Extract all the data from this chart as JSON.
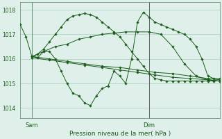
{
  "bg_color": "#dff0ea",
  "line_color": "#1a5c1a",
  "grid_color": "#a8cfc0",
  "axis_color": "#5a8a6a",
  "title": "Pression niveau de la mer( hPa )",
  "xlabel_sam": "Sam",
  "xlabel_dim": "Dim",
  "ylim": [
    1013.6,
    1018.3
  ],
  "yticks": [
    1014,
    1015,
    1016,
    1017,
    1018
  ],
  "xlim": [
    0,
    34
  ],
  "sam_x": 2,
  "dim_x": 22,
  "series": [
    {
      "x": [
        0,
        1,
        2,
        3,
        4,
        5,
        6,
        7,
        8,
        9,
        10,
        11,
        12,
        13,
        14,
        15,
        16,
        17,
        18,
        19,
        20,
        21,
        22,
        23,
        24,
        25,
        26,
        27,
        28,
        29,
        30,
        31,
        32,
        33,
        34
      ],
      "y": [
        1017.4,
        1016.9,
        1016.1,
        1016.05,
        1016.3,
        1016.3,
        1016.0,
        1015.5,
        1015.0,
        1014.6,
        1014.5,
        1014.2,
        1014.1,
        1014.5,
        1014.8,
        1014.9,
        1015.5,
        1015.3,
        1015.0,
        1016.0,
        1017.5,
        1017.9,
        1017.7,
        1017.5,
        1017.4,
        1017.3,
        1017.2,
        1017.1,
        1017.0,
        1016.8,
        1016.5,
        1016.0,
        1015.3,
        1015.2,
        1015.2
      ]
    },
    {
      "x": [
        2,
        5,
        8,
        11,
        14,
        17,
        20,
        23,
        26,
        29,
        32,
        34
      ],
      "y": [
        1016.05,
        1015.95,
        1015.85,
        1015.75,
        1015.65,
        1015.55,
        1015.45,
        1015.35,
        1015.25,
        1015.2,
        1015.15,
        1015.1
      ]
    },
    {
      "x": [
        2,
        5,
        8,
        11,
        14,
        17,
        20,
        23,
        26,
        29,
        32,
        34
      ],
      "y": [
        1016.1,
        1016.0,
        1015.9,
        1015.8,
        1015.7,
        1015.65,
        1015.55,
        1015.45,
        1015.4,
        1015.3,
        1015.2,
        1015.15
      ]
    },
    {
      "x": [
        2,
        4,
        6,
        8,
        10,
        12,
        14,
        16,
        18,
        20,
        22,
        24,
        26,
        28,
        30,
        32,
        34
      ],
      "y": [
        1016.1,
        1016.3,
        1016.5,
        1016.6,
        1016.8,
        1016.9,
        1017.0,
        1017.05,
        1017.1,
        1017.1,
        1017.1,
        1017.0,
        1016.5,
        1015.8,
        1015.3,
        1015.15,
        1015.1
      ]
    },
    {
      "x": [
        2,
        3,
        4,
        5,
        6,
        7,
        8,
        9,
        10,
        11,
        12,
        13,
        14,
        15,
        16,
        17,
        18,
        19,
        20,
        21,
        22,
        23,
        24,
        25,
        26,
        27,
        28,
        29,
        30,
        31,
        32,
        33,
        34
      ],
      "y": [
        1016.05,
        1016.2,
        1016.4,
        1016.7,
        1017.0,
        1017.3,
        1017.6,
        1017.75,
        1017.8,
        1017.85,
        1017.8,
        1017.7,
        1017.5,
        1017.3,
        1017.1,
        1016.9,
        1016.6,
        1016.3,
        1016.0,
        1015.7,
        1015.4,
        1015.2,
        1015.15,
        1015.1,
        1015.1,
        1015.1,
        1015.1,
        1015.1,
        1015.1,
        1015.1,
        1015.1,
        1015.1,
        1015.1
      ]
    }
  ]
}
